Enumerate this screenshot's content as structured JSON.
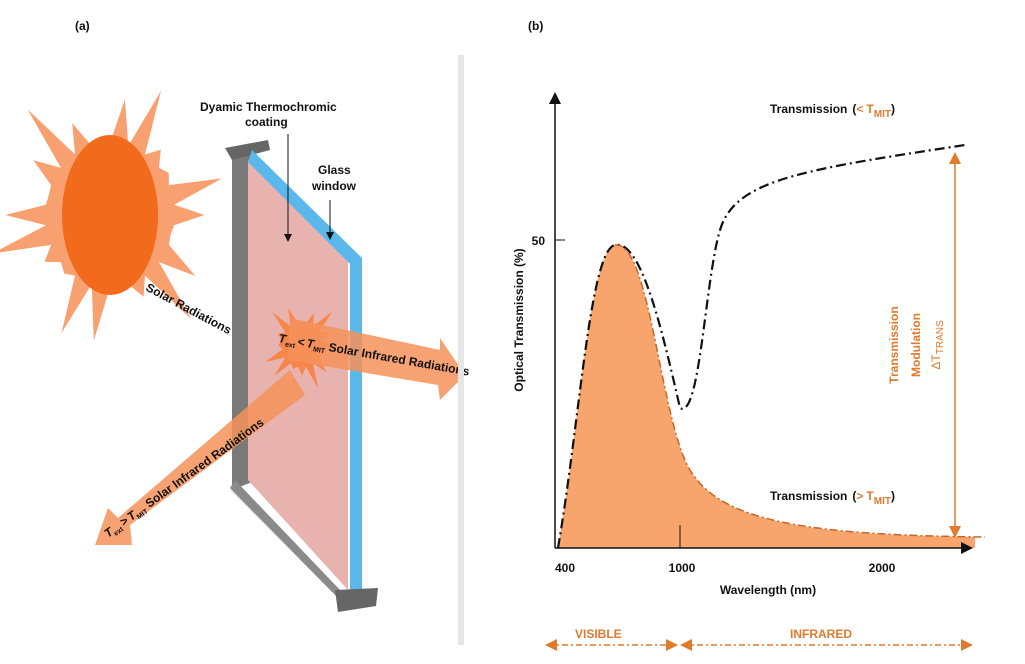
{
  "panel_a": {
    "label": "(a)",
    "coating_label": [
      "Dyamic Thermochromic",
      "coating"
    ],
    "glass_label": [
      "Glass",
      "window"
    ],
    "solar_label": "Solar Radiations",
    "below_mit": {
      "t": "T",
      "ext": "ext",
      "op": "<",
      "t2": "T",
      "mit": "MIT",
      "text": "Solar Infrared Radiations"
    },
    "above_mit": {
      "t": "T",
      "ext": "ext",
      "op": ">",
      "t2": "T",
      "mit": "MIT",
      "text": "Solar Infrared Radiations"
    }
  },
  "panel_b": {
    "label": "(b)",
    "y_axis_label": "Optical Transmission (%)",
    "x_axis_label": "Wavelength (nm)",
    "y_ticks": [
      50
    ],
    "x_ticks": [
      400,
      1000,
      2000
    ],
    "transmission_low": {
      "text": "Transmission",
      "open": "(",
      "op": "<",
      "t": "T",
      "mit": "MIT",
      "close": ")"
    },
    "transmission_high": {
      "text": "Transmission",
      "open": "(",
      "op": ">",
      "t": "T",
      "mit": "MIT",
      "close": ")"
    },
    "modulation": [
      "Transmission",
      "Modulation"
    ],
    "delta": "ΔT",
    "trans": "TRANS",
    "visible": "VISIBLE",
    "infrared": "INFRARED"
  }
}
